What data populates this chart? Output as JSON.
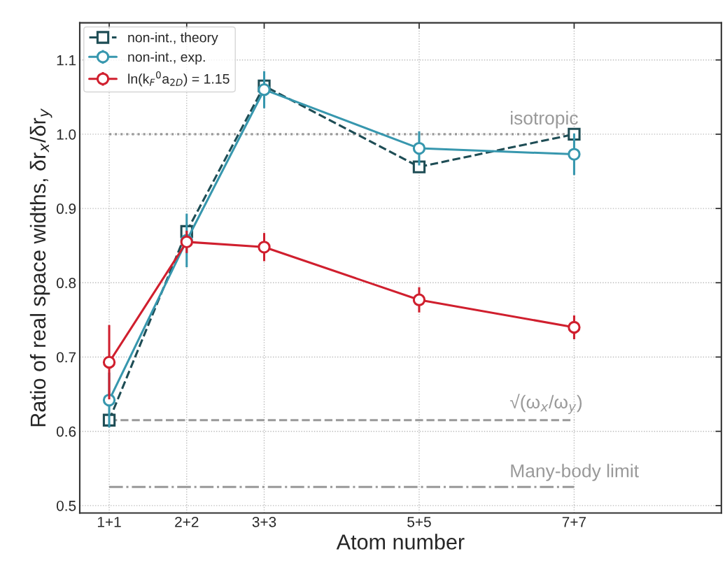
{
  "chart_data": {
    "type": "line",
    "xlabel": "Atom number",
    "ylabel": "Ratio of real space widths, δr$_{x}$/δr$_{y}$",
    "categories": [
      "1+1",
      "2+2",
      "3+3",
      null,
      "5+5",
      null,
      "7+7"
    ],
    "ylim": [
      0.49,
      1.15
    ],
    "yticks": [
      0.5,
      0.6,
      0.7,
      0.8,
      0.9,
      {
        "value": 1.0,
        "label": "1.0"
      },
      1.1
    ],
    "grid": true,
    "legend": "top left",
    "series": [
      {
        "name": "non-int., theory",
        "color": "#1e4d55",
        "marker": "square",
        "line_style": "dashed",
        "values": [
          0.615,
          0.869,
          1.065,
          null,
          0.956,
          null,
          1.0
        ]
      },
      {
        "name": "non-int., exp.",
        "color": "#3797ae",
        "marker": "circle",
        "line_style": "solid",
        "values": [
          0.642,
          0.857,
          1.06,
          null,
          0.981,
          null,
          0.973
        ],
        "errors": [
          0.037,
          0.036,
          0.025,
          null,
          0.023,
          null,
          0.028
        ]
      },
      {
        "name": "ln(k$_{F}$$^{0}$a$_{2D}$) = 1.15",
        "color": "#d01f2e",
        "marker": "circle",
        "line_style": "solid",
        "values": [
          0.693,
          0.855,
          0.848,
          null,
          0.777,
          null,
          0.74
        ],
        "errors": [
          0.05,
          0.015,
          0.019,
          null,
          0.017,
          null,
          0.016
        ]
      }
    ],
    "ref_lines": [
      {
        "axis": "y",
        "value": 1.0,
        "label": "isotropic",
        "color": "#999999",
        "line_style": "dotted"
      },
      {
        "axis": "y",
        "value": 0.615,
        "label": "√(ω$_{x}$/ω$_{y}$)",
        "color": "#999999",
        "line_style": "dashed"
      },
      {
        "axis": "y",
        "value": 0.525,
        "label": "Many-body limit",
        "color": "#999999",
        "line_style": "dashdot"
      }
    ]
  }
}
